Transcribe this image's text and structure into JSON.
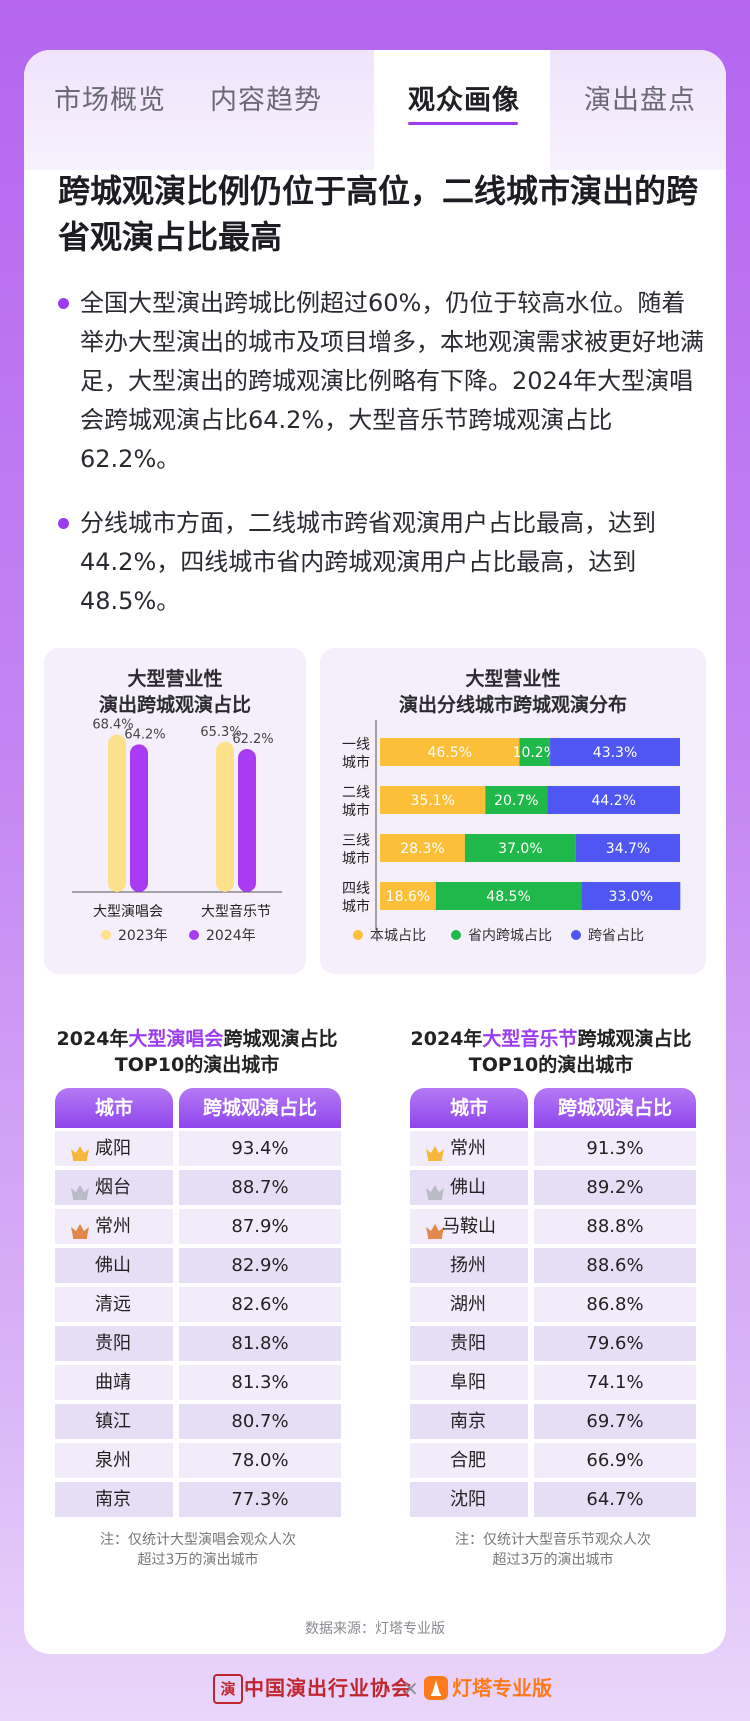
{
  "tabs": [
    "市场概览",
    "内容趋势",
    "观众画像",
    "演出盘点"
  ],
  "active_tab": "观众画像",
  "headline": "跨城观演比例仍位于高位，二线城市演出的跨省观演占比最高",
  "bullets": [
    "全国大型演出跨城比例超过60%，仍位于较高水位。随着举办大型演出的城市及项目增多，本地观演需求被更好地满足，大型演出的跨城观演比例略有下降。2024年大型演唱会跨城观演占比64.2%，大型音乐节跨城观演占比62.2%。",
    "分线城市方面，二线城市跨省观演用户占比最高，达到44.2%，四线城市省内跨城观演用户占比最高，达到48.5%。"
  ],
  "colors": {
    "purple": "#9b3cf0",
    "y2023": "#fde08a",
    "y2024": "#a93cf2",
    "local": "#fbbf3a",
    "intra": "#20b84a",
    "inter": "#4f56f2"
  },
  "chart_data": [
    {
      "type": "bar",
      "title": "大型营业性\n演出跨城观演占比",
      "categories": [
        "大型演唱会",
        "大型音乐节"
      ],
      "series": [
        {
          "name": "2023年",
          "values": [
            68.4,
            65.3
          ],
          "labels": [
            "68.4%",
            "65.3%"
          ]
        },
        {
          "name": "2024年",
          "values": [
            64.2,
            62.2
          ],
          "labels": [
            "64.2%",
            "62.2%"
          ]
        }
      ],
      "ylim": [
        0,
        100
      ],
      "legend": "bottom"
    },
    {
      "type": "bar",
      "orientation": "horizontal-stacked",
      "title": "大型营业性\n演出分线城市跨城观演分布",
      "categories": [
        "一线\n城市",
        "二线\n城市",
        "三线\n城市",
        "四线\n城市"
      ],
      "series": [
        {
          "name": "本城占比",
          "values": [
            46.5,
            35.1,
            28.3,
            18.6
          ]
        },
        {
          "name": "省内跨城占比",
          "values": [
            10.2,
            20.7,
            37.0,
            48.5
          ]
        },
        {
          "name": "跨省占比",
          "values": [
            43.3,
            44.2,
            34.7,
            33.0
          ]
        }
      ],
      "legend": "bottom"
    }
  ],
  "table_concert": {
    "title_pre": "2024年",
    "title_hl": "大型演唱会",
    "title_post": "跨城观演占比",
    "title_line2": "TOP10的演出城市",
    "headers": [
      "城市",
      "跨城观演占比"
    ],
    "rows": [
      {
        "city": "咸阳",
        "value": "93.4%",
        "crown": "gold"
      },
      {
        "city": "烟台",
        "value": "88.7%",
        "crown": "silver"
      },
      {
        "city": "常州",
        "value": "87.9%",
        "crown": "bronze"
      },
      {
        "city": "佛山",
        "value": "82.9%"
      },
      {
        "city": "清远",
        "value": "82.6%"
      },
      {
        "city": "贵阳",
        "value": "81.8%"
      },
      {
        "city": "曲靖",
        "value": "81.3%"
      },
      {
        "city": "镇江",
        "value": "80.7%"
      },
      {
        "city": "泉州",
        "value": "78.0%"
      },
      {
        "city": "南京",
        "value": "77.3%"
      }
    ],
    "note": "注：仅统计大型演唱会观众人次\n超过3万的演出城市"
  },
  "table_festival": {
    "title_pre": "2024年",
    "title_hl": "大型音乐节",
    "title_post": "跨城观演占比",
    "title_line2": "TOP10的演出城市",
    "headers": [
      "城市",
      "跨城观演占比"
    ],
    "rows": [
      {
        "city": "常州",
        "value": "91.3%",
        "crown": "gold"
      },
      {
        "city": "佛山",
        "value": "89.2%",
        "crown": "silver"
      },
      {
        "city": "马鞍山",
        "value": "88.8%",
        "crown": "bronze"
      },
      {
        "city": "扬州",
        "value": "88.6%"
      },
      {
        "city": "湖州",
        "value": "86.8%"
      },
      {
        "city": "贵阳",
        "value": "79.6%"
      },
      {
        "city": "阜阳",
        "value": "74.1%"
      },
      {
        "city": "南京",
        "value": "69.7%"
      },
      {
        "city": "合肥",
        "value": "66.9%"
      },
      {
        "city": "沈阳",
        "value": "64.7%"
      }
    ],
    "note": "注：仅统计大型音乐节观众人次\n超过3万的演出城市"
  },
  "source": "数据来源：灯塔专业版",
  "footer": {
    "org": "中国演出行业协会",
    "sep": "×",
    "brand": "灯塔专业版",
    "seal": "演"
  }
}
